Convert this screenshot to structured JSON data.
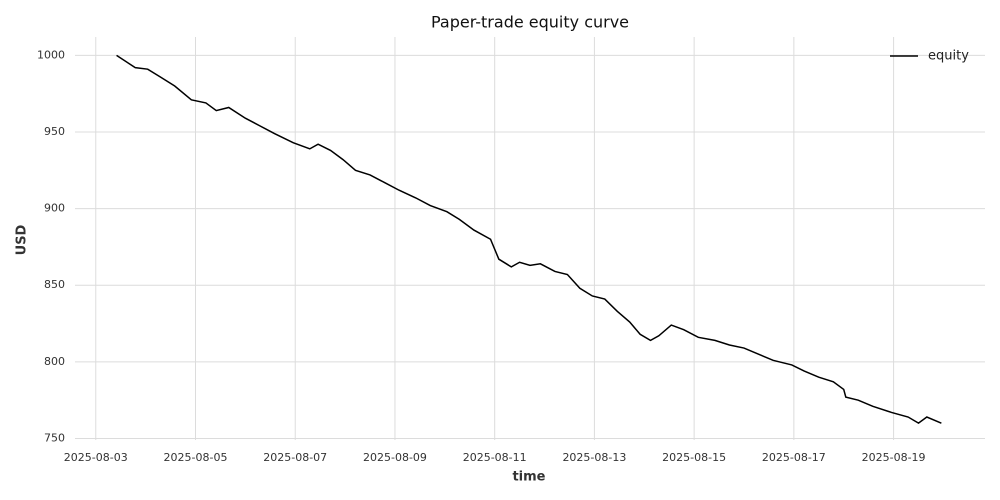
{
  "chart_data": {
    "type": "line",
    "title": "Paper-trade equity curve",
    "x_label": "time",
    "y_label": "USD",
    "x": [
      "2025-08-03 10:00",
      "2025-08-03 19:00",
      "2025-08-04 01:00",
      "2025-08-04 07:00",
      "2025-08-04 14:00",
      "2025-08-04 22:00",
      "2025-08-05 05:00",
      "2025-08-05 10:00",
      "2025-08-05 16:00",
      "2025-08-06 00:00",
      "2025-08-06 07:00",
      "2025-08-06 14:00",
      "2025-08-06 23:00",
      "2025-08-07 07:00",
      "2025-08-07 11:00",
      "2025-08-07 17:00",
      "2025-08-07 23:00",
      "2025-08-08 05:00",
      "2025-08-08 12:00",
      "2025-08-08 19:00",
      "2025-08-09 02:00",
      "2025-08-09 10:00",
      "2025-08-09 17:00",
      "2025-08-10 01:00",
      "2025-08-10 07:00",
      "2025-08-10 14:00",
      "2025-08-10 22:00",
      "2025-08-11 02:00",
      "2025-08-11 08:00",
      "2025-08-11 12:00",
      "2025-08-11 17:00",
      "2025-08-11 22:00",
      "2025-08-12 05:00",
      "2025-08-12 11:00",
      "2025-08-12 17:00",
      "2025-08-12 23:00",
      "2025-08-13 05:00",
      "2025-08-13 11:00",
      "2025-08-13 17:00",
      "2025-08-13 22:00",
      "2025-08-14 03:00",
      "2025-08-14 07:00",
      "2025-08-14 13:00",
      "2025-08-14 19:00",
      "2025-08-15 02:00",
      "2025-08-15 10:00",
      "2025-08-15 17:00",
      "2025-08-16 00:00",
      "2025-08-16 07:00",
      "2025-08-16 14:00",
      "2025-08-16 23:00",
      "2025-08-17 05:00",
      "2025-08-17 12:00",
      "2025-08-17 19:00",
      "2025-08-18 00:00",
      "2025-08-18 01:00",
      "2025-08-18 07:00",
      "2025-08-18 14:00",
      "2025-08-18 23:00",
      "2025-08-19 07:00",
      "2025-08-19 12:00",
      "2025-08-19 16:00",
      "2025-08-19 23:00"
    ],
    "series": [
      {
        "name": "equity",
        "color": "#000000",
        "values": [
          1000,
          992,
          991,
          986,
          980,
          971,
          969,
          964,
          966,
          959,
          954,
          949,
          943,
          939,
          942,
          938,
          932,
          925,
          922,
          917,
          912,
          907,
          902,
          898,
          893,
          886,
          880,
          867,
          862,
          865,
          863,
          864,
          859,
          857,
          848,
          843,
          841,
          833,
          826,
          818,
          814,
          817,
          824,
          821,
          816,
          814,
          811,
          809,
          805,
          801,
          798,
          794,
          790,
          787,
          782,
          777,
          775,
          771,
          767,
          764,
          760,
          764,
          760
        ]
      }
    ],
    "xlim": [
      "2025-08-02 14:00",
      "2025-08-20 20:00"
    ],
    "xticks": [
      "2025-08-03",
      "2025-08-05",
      "2025-08-07",
      "2025-08-09",
      "2025-08-11",
      "2025-08-13",
      "2025-08-15",
      "2025-08-17",
      "2025-08-19"
    ],
    "ylim": [
      749,
      1012
    ],
    "yticks": [
      750,
      800,
      850,
      900,
      950,
      1000
    ],
    "grid": true,
    "legend": "upper right"
  }
}
